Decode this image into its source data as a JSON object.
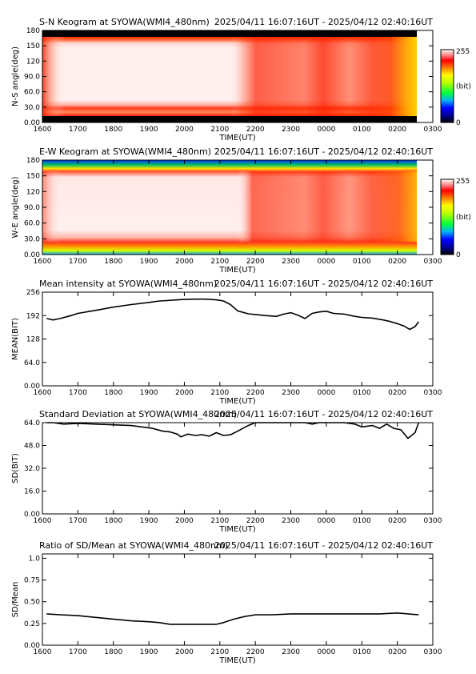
{
  "chart_data": [
    {
      "type": "heatmap",
      "title": "S-N Keogram at SYOWA(WMI4_480nm)",
      "time_range": "2025/04/11 16:07:16UT - 2025/04/12 02:40:16UT",
      "xlabel": "TIME(UT)",
      "ylabel": "N-S angle(deg)",
      "xticks": [
        "1600",
        "1700",
        "1800",
        "1900",
        "2000",
        "2100",
        "2200",
        "2300",
        "0000",
        "0100",
        "0200",
        "0300"
      ],
      "yticks": [
        "0.00",
        "30.0",
        "60.0",
        "90.0",
        "120",
        "150",
        "180"
      ],
      "xlim": [
        0,
        11
      ],
      "ylim": [
        0,
        180
      ],
      "colorbar": {
        "min_label": "0",
        "max_label": "255",
        "unit": "(bit)"
      }
    },
    {
      "type": "heatmap",
      "title": "E-W Keogram at SYOWA(WMI4_480nm)",
      "time_range": "2025/04/11 16:07:16UT - 2025/04/12 02:40:16UT",
      "xlabel": "TIME(UT)",
      "ylabel": "W-E angle(deg)",
      "xticks": [
        "1600",
        "1700",
        "1800",
        "1900",
        "2000",
        "2100",
        "2200",
        "2300",
        "0000",
        "0100",
        "0200",
        "0300"
      ],
      "yticks": [
        "0.00",
        "30.0",
        "60.0",
        "90.0",
        "120",
        "150",
        "180"
      ],
      "xlim": [
        0,
        11
      ],
      "ylim": [
        0,
        180
      ],
      "colorbar": {
        "min_label": "0",
        "max_label": "255",
        "unit": "(bit)"
      }
    },
    {
      "type": "line",
      "title": "Mean intensity at SYOWA(WMI4_480nm)",
      "time_range": "2025/04/11 16:07:16UT - 2025/04/12 02:40:16UT",
      "xlabel": "TIME(UT)",
      "ylabel": "MEAN(BIT)",
      "xticks": [
        "1600",
        "1700",
        "1800",
        "1900",
        "2000",
        "2100",
        "2200",
        "2300",
        "0000",
        "0100",
        "0200",
        "0300"
      ],
      "yticks": [
        "0.00",
        "64.0",
        "128",
        "192",
        "256"
      ],
      "xlim": [
        0,
        11
      ],
      "ylim": [
        0,
        256
      ],
      "x": [
        0.12,
        0.3,
        0.5,
        0.8,
        1.0,
        1.3,
        1.6,
        2.0,
        2.5,
        3.0,
        3.3,
        3.5,
        3.8,
        4.0,
        4.3,
        4.6,
        4.9,
        5.1,
        5.3,
        5.5,
        5.8,
        6.0,
        6.3,
        6.6,
        6.8,
        7.0,
        7.2,
        7.4,
        7.6,
        7.8,
        8.0,
        8.2,
        8.5,
        8.8,
        9.0,
        9.3,
        9.6,
        9.8,
        10.0,
        10.2,
        10.35,
        10.5,
        10.6
      ],
      "y": [
        184,
        180,
        184,
        192,
        198,
        203,
        208,
        215,
        222,
        228,
        232,
        233,
        235,
        236,
        237,
        237,
        235,
        232,
        222,
        205,
        197,
        195,
        192,
        190,
        196,
        200,
        193,
        184,
        198,
        202,
        204,
        198,
        196,
        190,
        187,
        185,
        180,
        176,
        170,
        163,
        154,
        162,
        175
      ]
    },
    {
      "type": "line",
      "title": "Standard Deviation at SYOWA(WMI4_480nm)",
      "time_range": "2025/04/11 16:07:16UT - 2025/04/12 02:40:16UT",
      "xlabel": "TIME(UT)",
      "ylabel": "SD(BIT)",
      "xticks": [
        "1600",
        "1700",
        "1800",
        "1900",
        "2000",
        "2100",
        "2200",
        "2300",
        "0000",
        "0100",
        "0200",
        "0300"
      ],
      "yticks": [
        "0.00",
        "16.0",
        "32.0",
        "48.0",
        "64.0"
      ],
      "xlim": [
        0,
        11
      ],
      "ylim": [
        0,
        64
      ],
      "x": [
        0.12,
        0.3,
        0.6,
        1.0,
        1.5,
        2.0,
        2.5,
        2.8,
        3.1,
        3.4,
        3.6,
        3.8,
        3.9,
        4.1,
        4.3,
        4.5,
        4.7,
        4.9,
        5.1,
        5.3,
        5.5,
        5.65,
        5.8,
        6.0,
        7.4,
        7.6,
        7.8,
        8.0,
        8.2,
        8.5,
        8.8,
        9.0,
        9.3,
        9.5,
        9.7,
        9.9,
        10.1,
        10.3,
        10.5,
        10.6
      ],
      "y": [
        64,
        64,
        63,
        63.5,
        63,
        62.5,
        62,
        61,
        60,
        58,
        57.5,
        56,
        54,
        56,
        55,
        55.5,
        54.5,
        57,
        55,
        55.5,
        58,
        60,
        62,
        64,
        64,
        63,
        64,
        64,
        64,
        64,
        63,
        61,
        62,
        60,
        63,
        60,
        59,
        53,
        57,
        64
      ]
    },
    {
      "type": "line",
      "title": "Ratio of SD/Mean at SYOWA(WMI4_480nm)",
      "time_range": "2025/04/11 16:07:16UT - 2025/04/12 02:40:16UT",
      "xlabel": "TIME(UT)",
      "ylabel": "SD/Mean",
      "xticks": [
        "1600",
        "1700",
        "1800",
        "1900",
        "2000",
        "2100",
        "2200",
        "2300",
        "0000",
        "0100",
        "0200",
        "0300"
      ],
      "yticks": [
        "0.00",
        "0.25",
        "0.50",
        "0.75",
        "1.0"
      ],
      "xlim": [
        0,
        11
      ],
      "ylim": [
        0,
        1.05
      ],
      "x": [
        0.12,
        0.5,
        1.0,
        1.5,
        2.0,
        2.5,
        3.0,
        3.3,
        3.6,
        3.8,
        4.0,
        4.3,
        4.6,
        4.9,
        5.1,
        5.4,
        5.7,
        6.0,
        6.5,
        7.0,
        7.5,
        8.0,
        8.5,
        9.0,
        9.5,
        10.0,
        10.3,
        10.6
      ],
      "y": [
        0.36,
        0.35,
        0.34,
        0.32,
        0.3,
        0.28,
        0.27,
        0.26,
        0.24,
        0.24,
        0.24,
        0.24,
        0.24,
        0.24,
        0.26,
        0.3,
        0.33,
        0.35,
        0.35,
        0.36,
        0.36,
        0.36,
        0.36,
        0.36,
        0.36,
        0.37,
        0.36,
        0.35
      ]
    }
  ]
}
